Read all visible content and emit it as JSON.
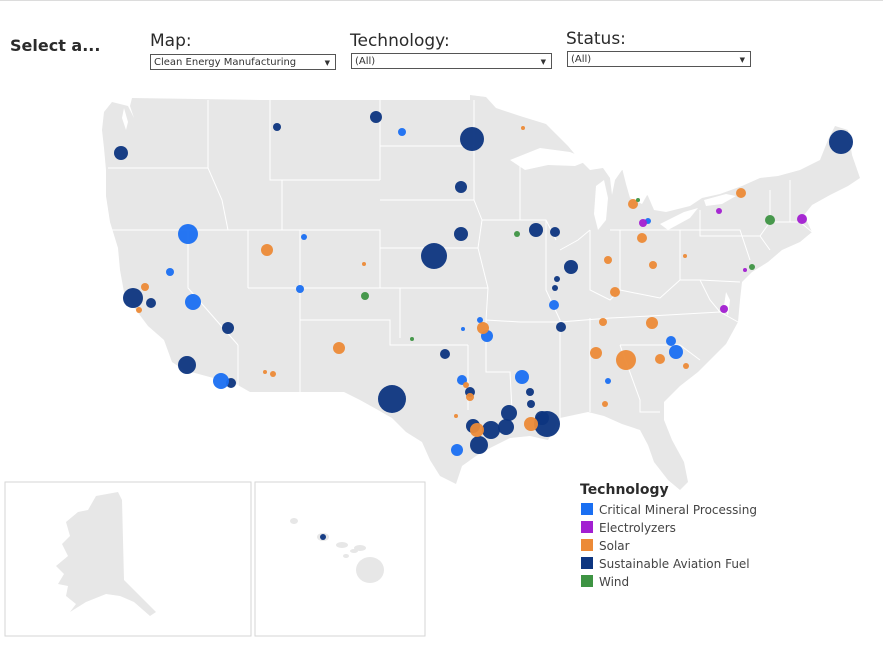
{
  "header": {
    "select_label": "Select a..."
  },
  "filters": {
    "map": {
      "title": "Map:",
      "value": "Clean Energy Manufacturing"
    },
    "technology": {
      "title": "Technology:",
      "value": "(All)"
    },
    "status": {
      "title": "Status:",
      "value": "(All)"
    }
  },
  "legend": {
    "title": "Technology",
    "items": [
      {
        "label": "Critical Mineral Processing",
        "color": "#1a6ff2"
      },
      {
        "label": "Electrolyzers",
        "color": "#a21fd1"
      },
      {
        "label": "Solar",
        "color": "#ec8a37"
      },
      {
        "label": "Sustainable Aviation Fuel",
        "color": "#0d3580"
      },
      {
        "label": "Wind",
        "color": "#3e9443"
      }
    ]
  },
  "colors": {
    "land": "#e7e7e7",
    "border": "#ffffff"
  }
}
